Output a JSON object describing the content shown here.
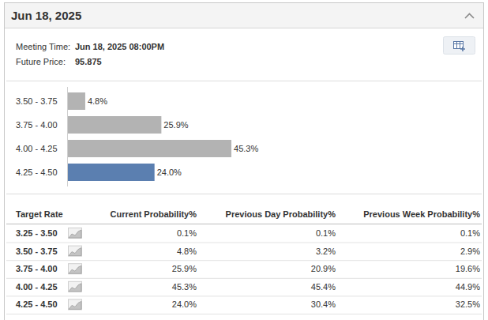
{
  "header": {
    "title": "Jun 18, 2025"
  },
  "details": [
    {
      "label": "Meeting Time:",
      "value": "Jun 18, 2025 08:00PM"
    },
    {
      "label": "Future Price:",
      "value": "95.875"
    }
  ],
  "chart_data": {
    "type": "bar",
    "orientation": "horizontal",
    "categories": [
      "3.50 - 3.75",
      "3.75 - 4.00",
      "4.00 - 4.25",
      "4.25 - 4.50"
    ],
    "values": [
      4.8,
      25.9,
      45.3,
      24.0
    ],
    "value_labels": [
      "4.8%",
      "25.9%",
      "45.3%",
      "24.0%"
    ],
    "colors": [
      "#b3b3b3",
      "#b3b3b3",
      "#b3b3b3",
      "#5b7fb0"
    ],
    "xlim": [
      0,
      100
    ],
    "data_labels": true,
    "tick_labels": "y"
  },
  "table": {
    "columns": [
      "Target Rate",
      "Current Probability%",
      "Previous Day Probability%",
      "Previous Week Probability%"
    ],
    "rows": [
      [
        "3.25 - 3.50",
        "0.1%",
        "0.1%",
        "0.1%"
      ],
      [
        "3.50 - 3.75",
        "4.8%",
        "3.2%",
        "2.9%"
      ],
      [
        "3.75 - 4.00",
        "25.9%",
        "20.9%",
        "19.6%"
      ],
      [
        "4.00 - 4.25",
        "45.3%",
        "45.4%",
        "44.9%"
      ],
      [
        "4.25 - 4.50",
        "24.0%",
        "30.4%",
        "32.5%"
      ]
    ]
  }
}
